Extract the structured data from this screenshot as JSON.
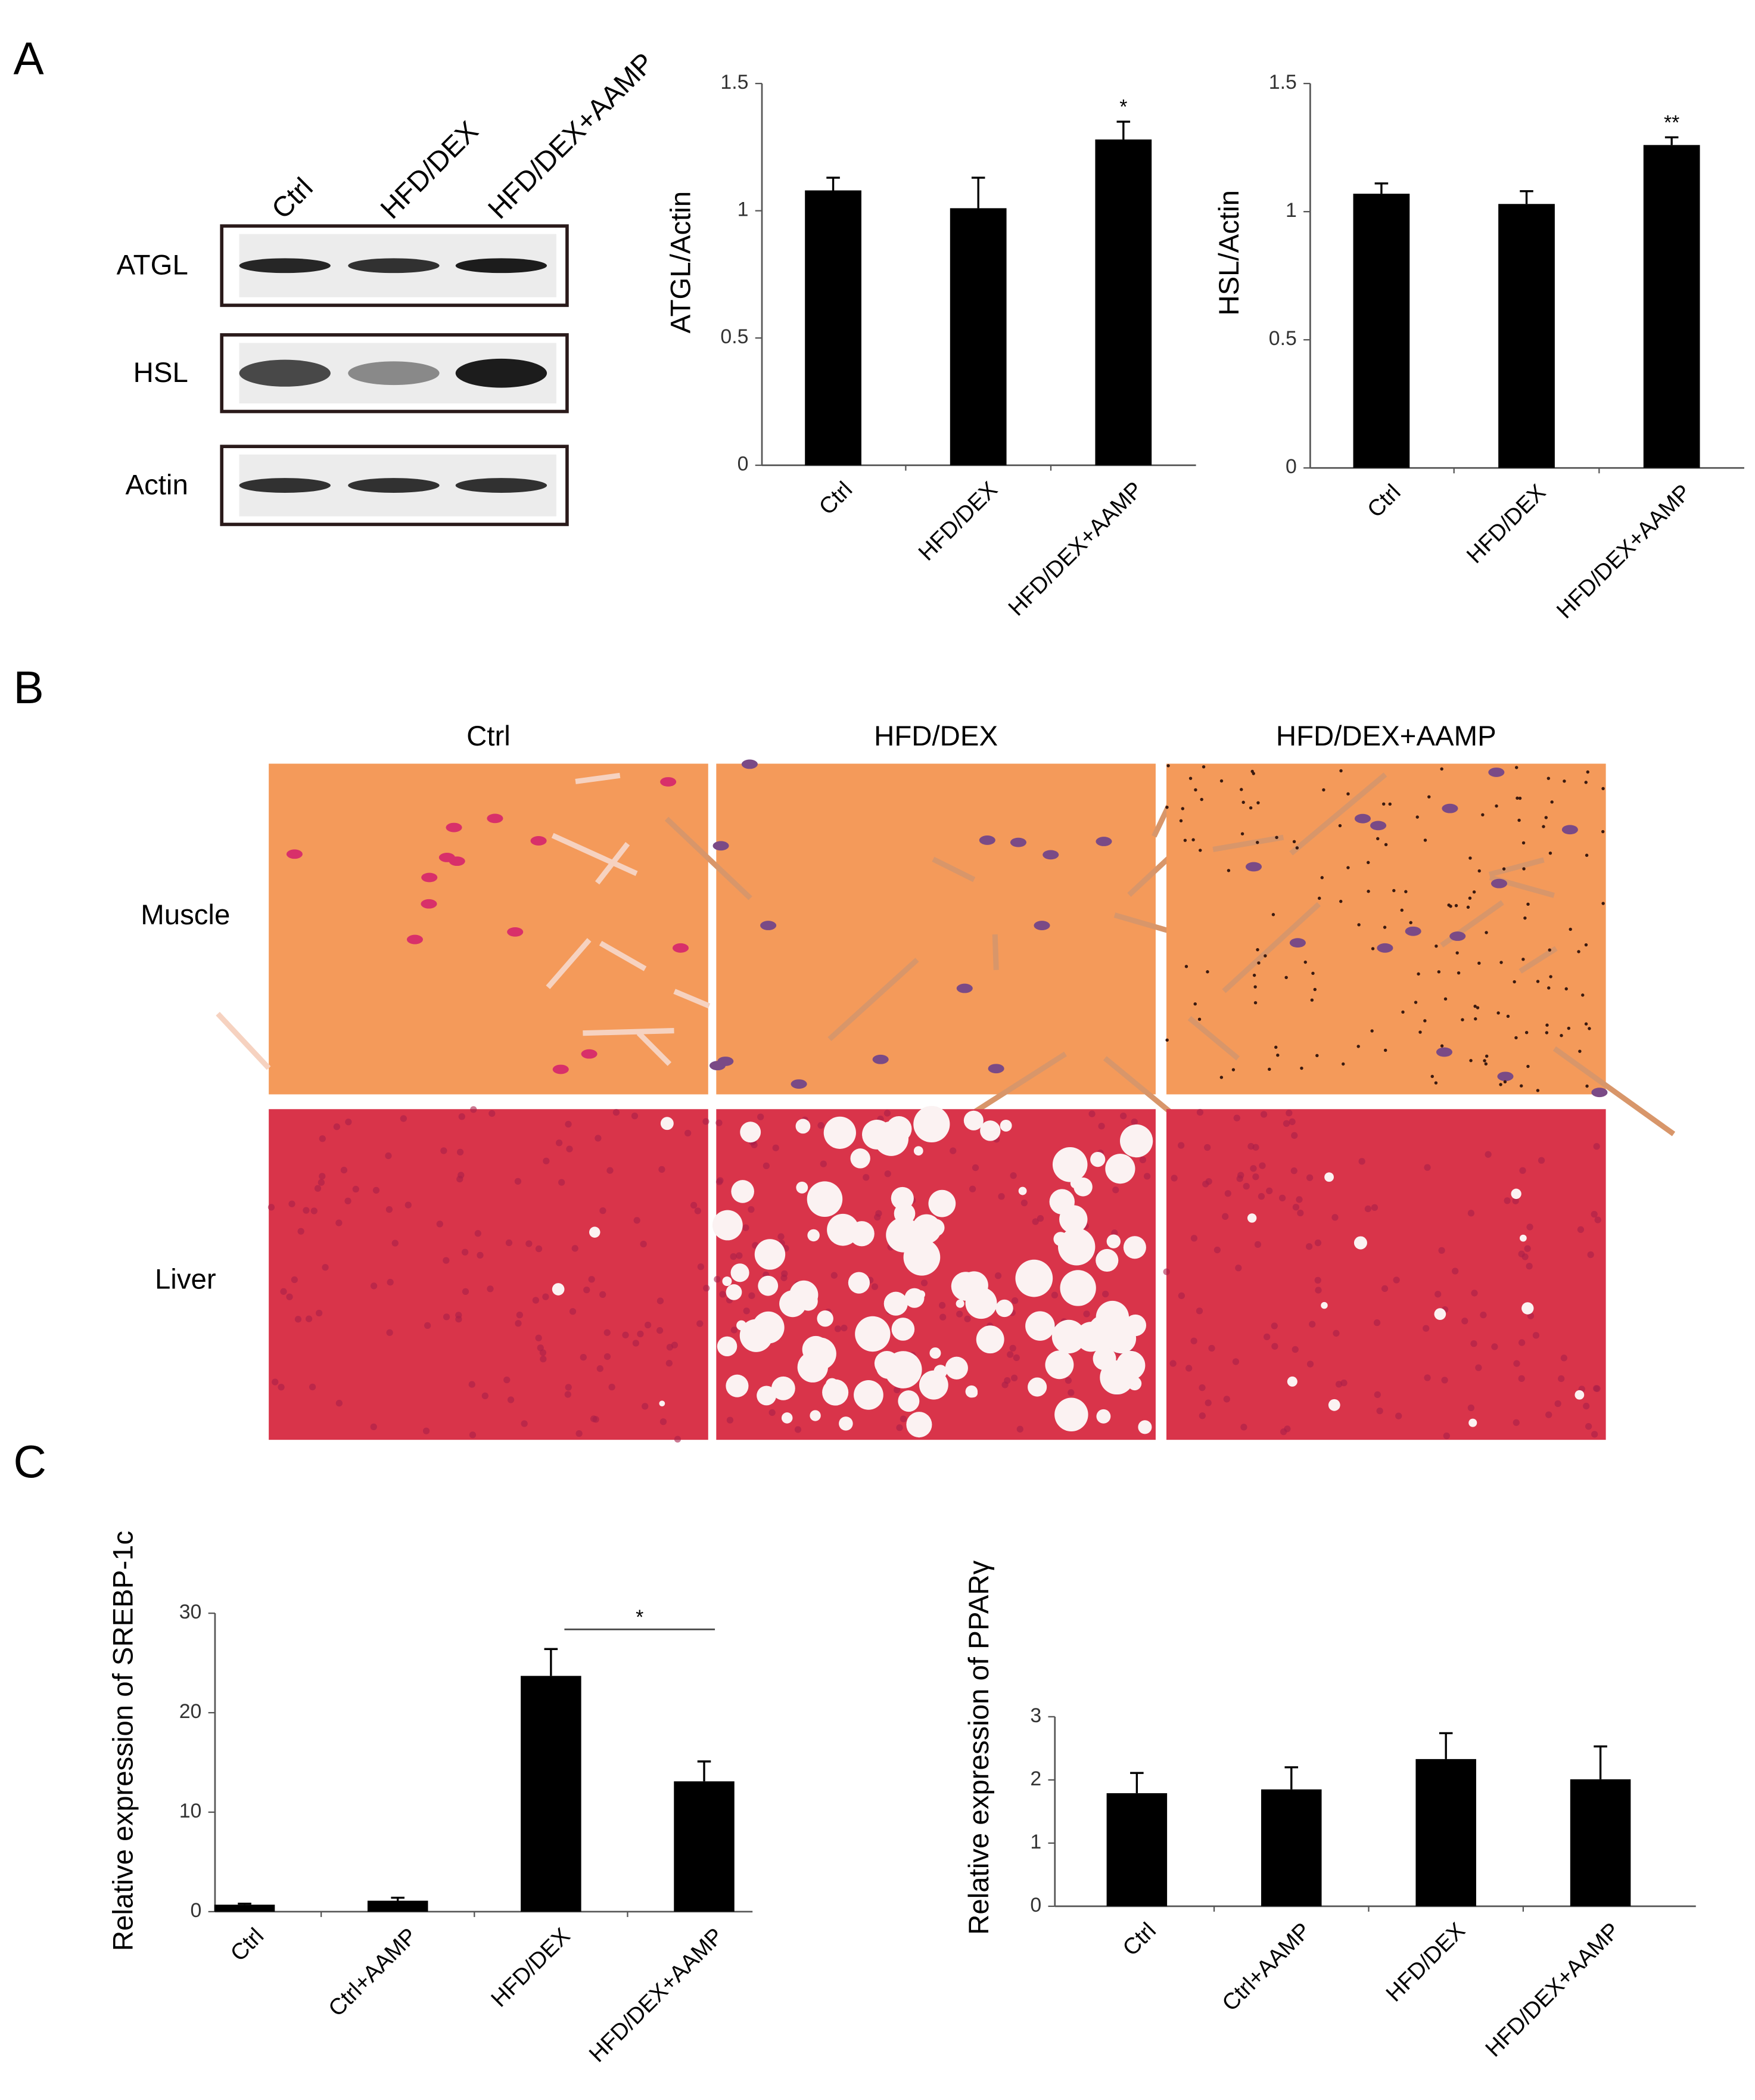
{
  "panels": [
    "A",
    "B",
    "C"
  ],
  "blot": {
    "lanes": [
      "Ctrl",
      "HFD/DEX",
      "HFD/DEX+AAMP"
    ],
    "rows": [
      "ATGL",
      "HSL",
      "Actin"
    ]
  },
  "histology": {
    "columns": [
      "Ctrl",
      "HFD/DEX",
      "HFD/DEX+AAMP"
    ],
    "rows": [
      "Muscle",
      "Liver"
    ]
  },
  "chart_data": [
    {
      "type": "bar",
      "y_label": "ATGL/Actin",
      "categories": [
        "Ctrl",
        "HFD/DEX",
        "HFD/DEX+AAMP"
      ],
      "series": [
        {
          "color": "#000000",
          "values": [
            1.08,
            1.01,
            1.28
          ],
          "errors": [
            0.05,
            0.12,
            0.07
          ]
        }
      ],
      "ylim": [
        0,
        1.5
      ],
      "yticks": [
        0,
        0.5,
        1,
        1.5
      ],
      "annotations": [
        {
          "text": "*",
          "x": "HFD/DEX+AAMP"
        }
      ]
    },
    {
      "type": "bar",
      "y_label": "HSL/Actin",
      "categories": [
        "Ctrl",
        "HFD/DEX",
        "HFD/DEX+AAMP"
      ],
      "series": [
        {
          "color": "#000000",
          "values": [
            1.07,
            1.03,
            1.26
          ],
          "errors": [
            0.04,
            0.05,
            0.03
          ]
        }
      ],
      "ylim": [
        0,
        1.5
      ],
      "yticks": [
        0,
        0.5,
        1,
        1.5
      ],
      "annotations": [
        {
          "text": "**",
          "x": "HFD/DEX+AAMP"
        }
      ]
    },
    {
      "type": "bar",
      "y_label": "Relative expression of SREBP-1c",
      "categories": [
        "Ctrl",
        "Ctrl+AAMP",
        "HFD/DEX",
        "HFD/DEX+AAMP"
      ],
      "series": [
        {
          "color": "#000000",
          "values": [
            0.7,
            1.1,
            23.7,
            13.1
          ],
          "errors": [
            0.1,
            0.3,
            2.7,
            2.0
          ]
        }
      ],
      "ylim": [
        0,
        30
      ],
      "yticks": [
        0,
        10,
        20,
        30
      ],
      "annotations": [
        {
          "text": "*",
          "from": "HFD/DEX",
          "to": "HFD/DEX+AAMP"
        }
      ]
    },
    {
      "type": "bar",
      "y_label": "Relative expression of PPARγ",
      "categories": [
        "Ctrl",
        "Ctrl+AAMP",
        "HFD/DEX",
        "HFD/DEX+AAMP"
      ],
      "series": [
        {
          "color": "#000000",
          "values": [
            1.79,
            1.85,
            2.33,
            2.01
          ],
          "errors": [
            0.32,
            0.35,
            0.41,
            0.52
          ]
        }
      ],
      "ylim": [
        0,
        3
      ],
      "yticks": [
        0,
        1,
        2,
        3
      ]
    }
  ]
}
